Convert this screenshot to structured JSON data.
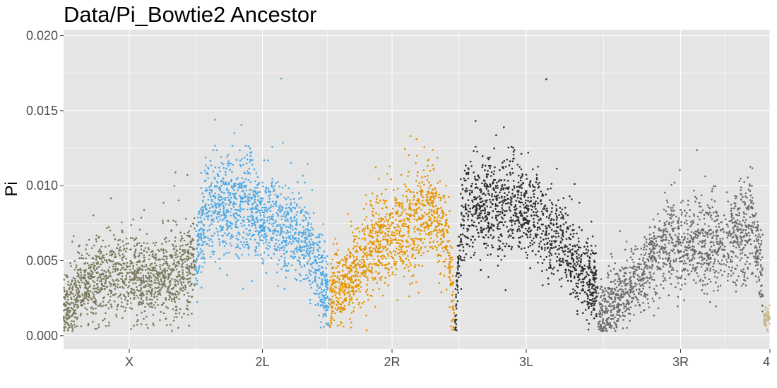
{
  "chart_data": {
    "type": "scatter",
    "title": "Data/Pi_Bowtie2 Ancestor",
    "xlabel": "",
    "ylabel": "Pi",
    "ylim": [
      -0.0009,
      0.0204
    ],
    "y_ticks": [
      "0.000",
      "0.005",
      "0.010",
      "0.015",
      "0.020"
    ],
    "y_tick_values": [
      0.0,
      0.005,
      0.01,
      0.015,
      0.02
    ],
    "x_categories": [
      "X",
      "2L",
      "2R",
      "3L",
      "3R",
      "4"
    ],
    "grid": true,
    "legend": "none",
    "panel_background": "#e5e5e5",
    "grid_color": "#ffffff",
    "series": [
      {
        "chromosome": "X",
        "color": "#7a7a5e",
        "x_range": [
          0.0,
          0.186
        ],
        "profile": [
          [
            0.0,
            0.0014
          ],
          [
            0.03,
            0.0036
          ],
          [
            0.08,
            0.0041
          ],
          [
            0.12,
            0.0038
          ],
          [
            0.16,
            0.0041
          ],
          [
            0.186,
            0.0048
          ]
        ],
        "spread": 0.0017,
        "num_points": 1400
      },
      {
        "chromosome": "2L",
        "color": "#4ea9e4",
        "x_range": [
          0.187,
          0.376
        ],
        "profile": [
          [
            0.187,
            0.0048
          ],
          [
            0.2,
            0.0085
          ],
          [
            0.26,
            0.0088
          ],
          [
            0.3,
            0.0075
          ],
          [
            0.34,
            0.0065
          ],
          [
            0.36,
            0.0045
          ],
          [
            0.376,
            0.0022
          ]
        ],
        "spread": 0.0016,
        "num_points": 1400
      },
      {
        "chromosome": "2R",
        "color": "#e59400",
        "x_range": [
          0.377,
          0.553
        ],
        "profile": [
          [
            0.377,
            0.0028
          ],
          [
            0.4,
            0.0035
          ],
          [
            0.43,
            0.0055
          ],
          [
            0.48,
            0.0068
          ],
          [
            0.52,
            0.0085
          ],
          [
            0.545,
            0.006
          ],
          [
            0.553,
            0.0012
          ]
        ],
        "spread": 0.0017,
        "num_points": 1300
      },
      {
        "chromosome": "3L",
        "color": "#2d2d2d",
        "x_range": [
          0.554,
          0.756
        ],
        "profile": [
          [
            0.554,
            0.001
          ],
          [
            0.565,
            0.0085
          ],
          [
            0.6,
            0.0085
          ],
          [
            0.65,
            0.0088
          ],
          [
            0.7,
            0.0065
          ],
          [
            0.73,
            0.0045
          ],
          [
            0.756,
            0.003
          ]
        ],
        "spread": 0.0016,
        "num_points": 1300
      },
      {
        "chromosome": "3R",
        "color": "#6a6a6a",
        "x_range": [
          0.757,
          0.99
        ],
        "profile": [
          [
            0.757,
            0.0012
          ],
          [
            0.8,
            0.0032
          ],
          [
            0.85,
            0.0058
          ],
          [
            0.9,
            0.0062
          ],
          [
            0.95,
            0.0062
          ],
          [
            0.975,
            0.0075
          ],
          [
            0.99,
            0.0042
          ]
        ],
        "spread": 0.0016,
        "num_points": 1500
      },
      {
        "chromosome": "4",
        "color": "#c9b88a",
        "x_range": [
          0.991,
          1.0
        ],
        "profile": [
          [
            0.991,
            0.0012
          ],
          [
            1.0,
            0.0012
          ]
        ],
        "spread": 0.0005,
        "num_points": 60
      }
    ]
  }
}
